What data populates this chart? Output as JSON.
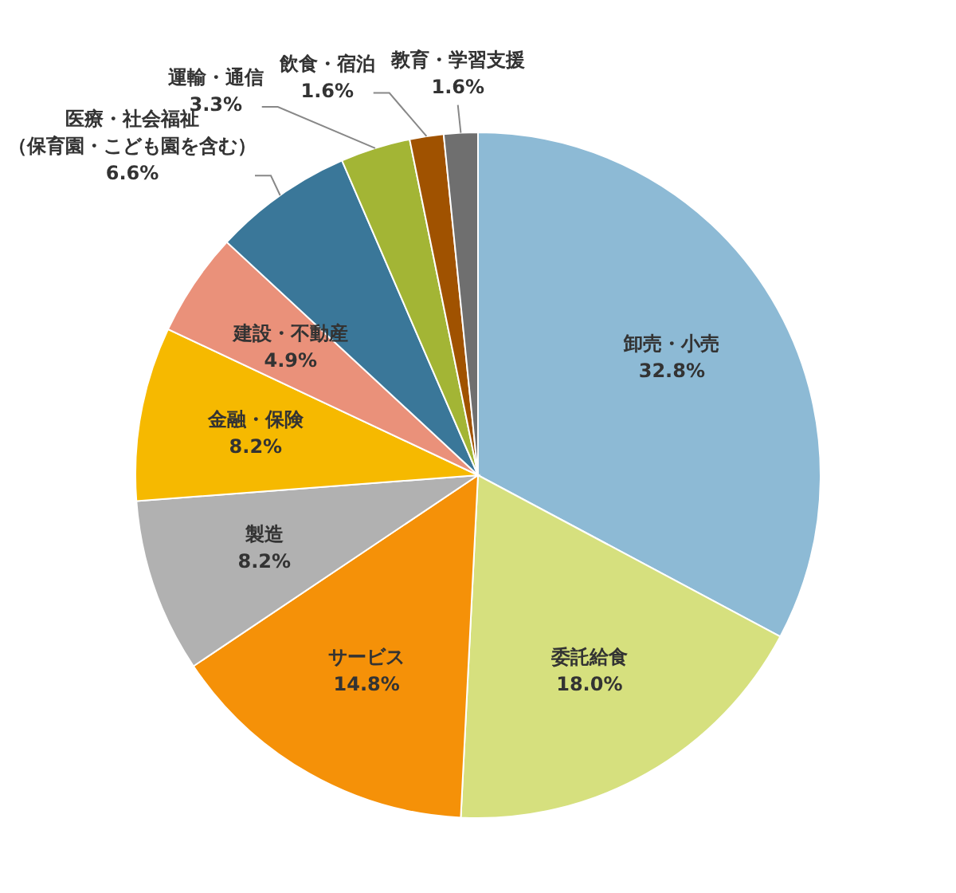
{
  "chart_data": {
    "type": "pie",
    "categories": [
      "卸売・小売",
      "委託給食",
      "サービス",
      "製造",
      "金融・保険",
      "建設・不動産",
      "医療・社会福祉（保育園・こども園を含む）",
      "運輸・通信",
      "飲食・宿泊",
      "教育・学習支援"
    ],
    "values": [
      32.8,
      18.0,
      14.8,
      8.2,
      8.2,
      4.9,
      6.6,
      3.3,
      1.6,
      1.6
    ],
    "colors": [
      "#8dbad5",
      "#d6e07e",
      "#f59108",
      "#b1b1b1",
      "#f6b900",
      "#ea917a",
      "#3a7799",
      "#a3b535",
      "#a05200",
      "#6f6f6f"
    ],
    "value_labels": [
      "32.8%",
      "18.0%",
      "14.8%",
      "8.2%",
      "8.2%",
      "4.9%",
      "6.6%",
      "3.3%",
      "1.6%",
      "1.6%"
    ]
  }
}
